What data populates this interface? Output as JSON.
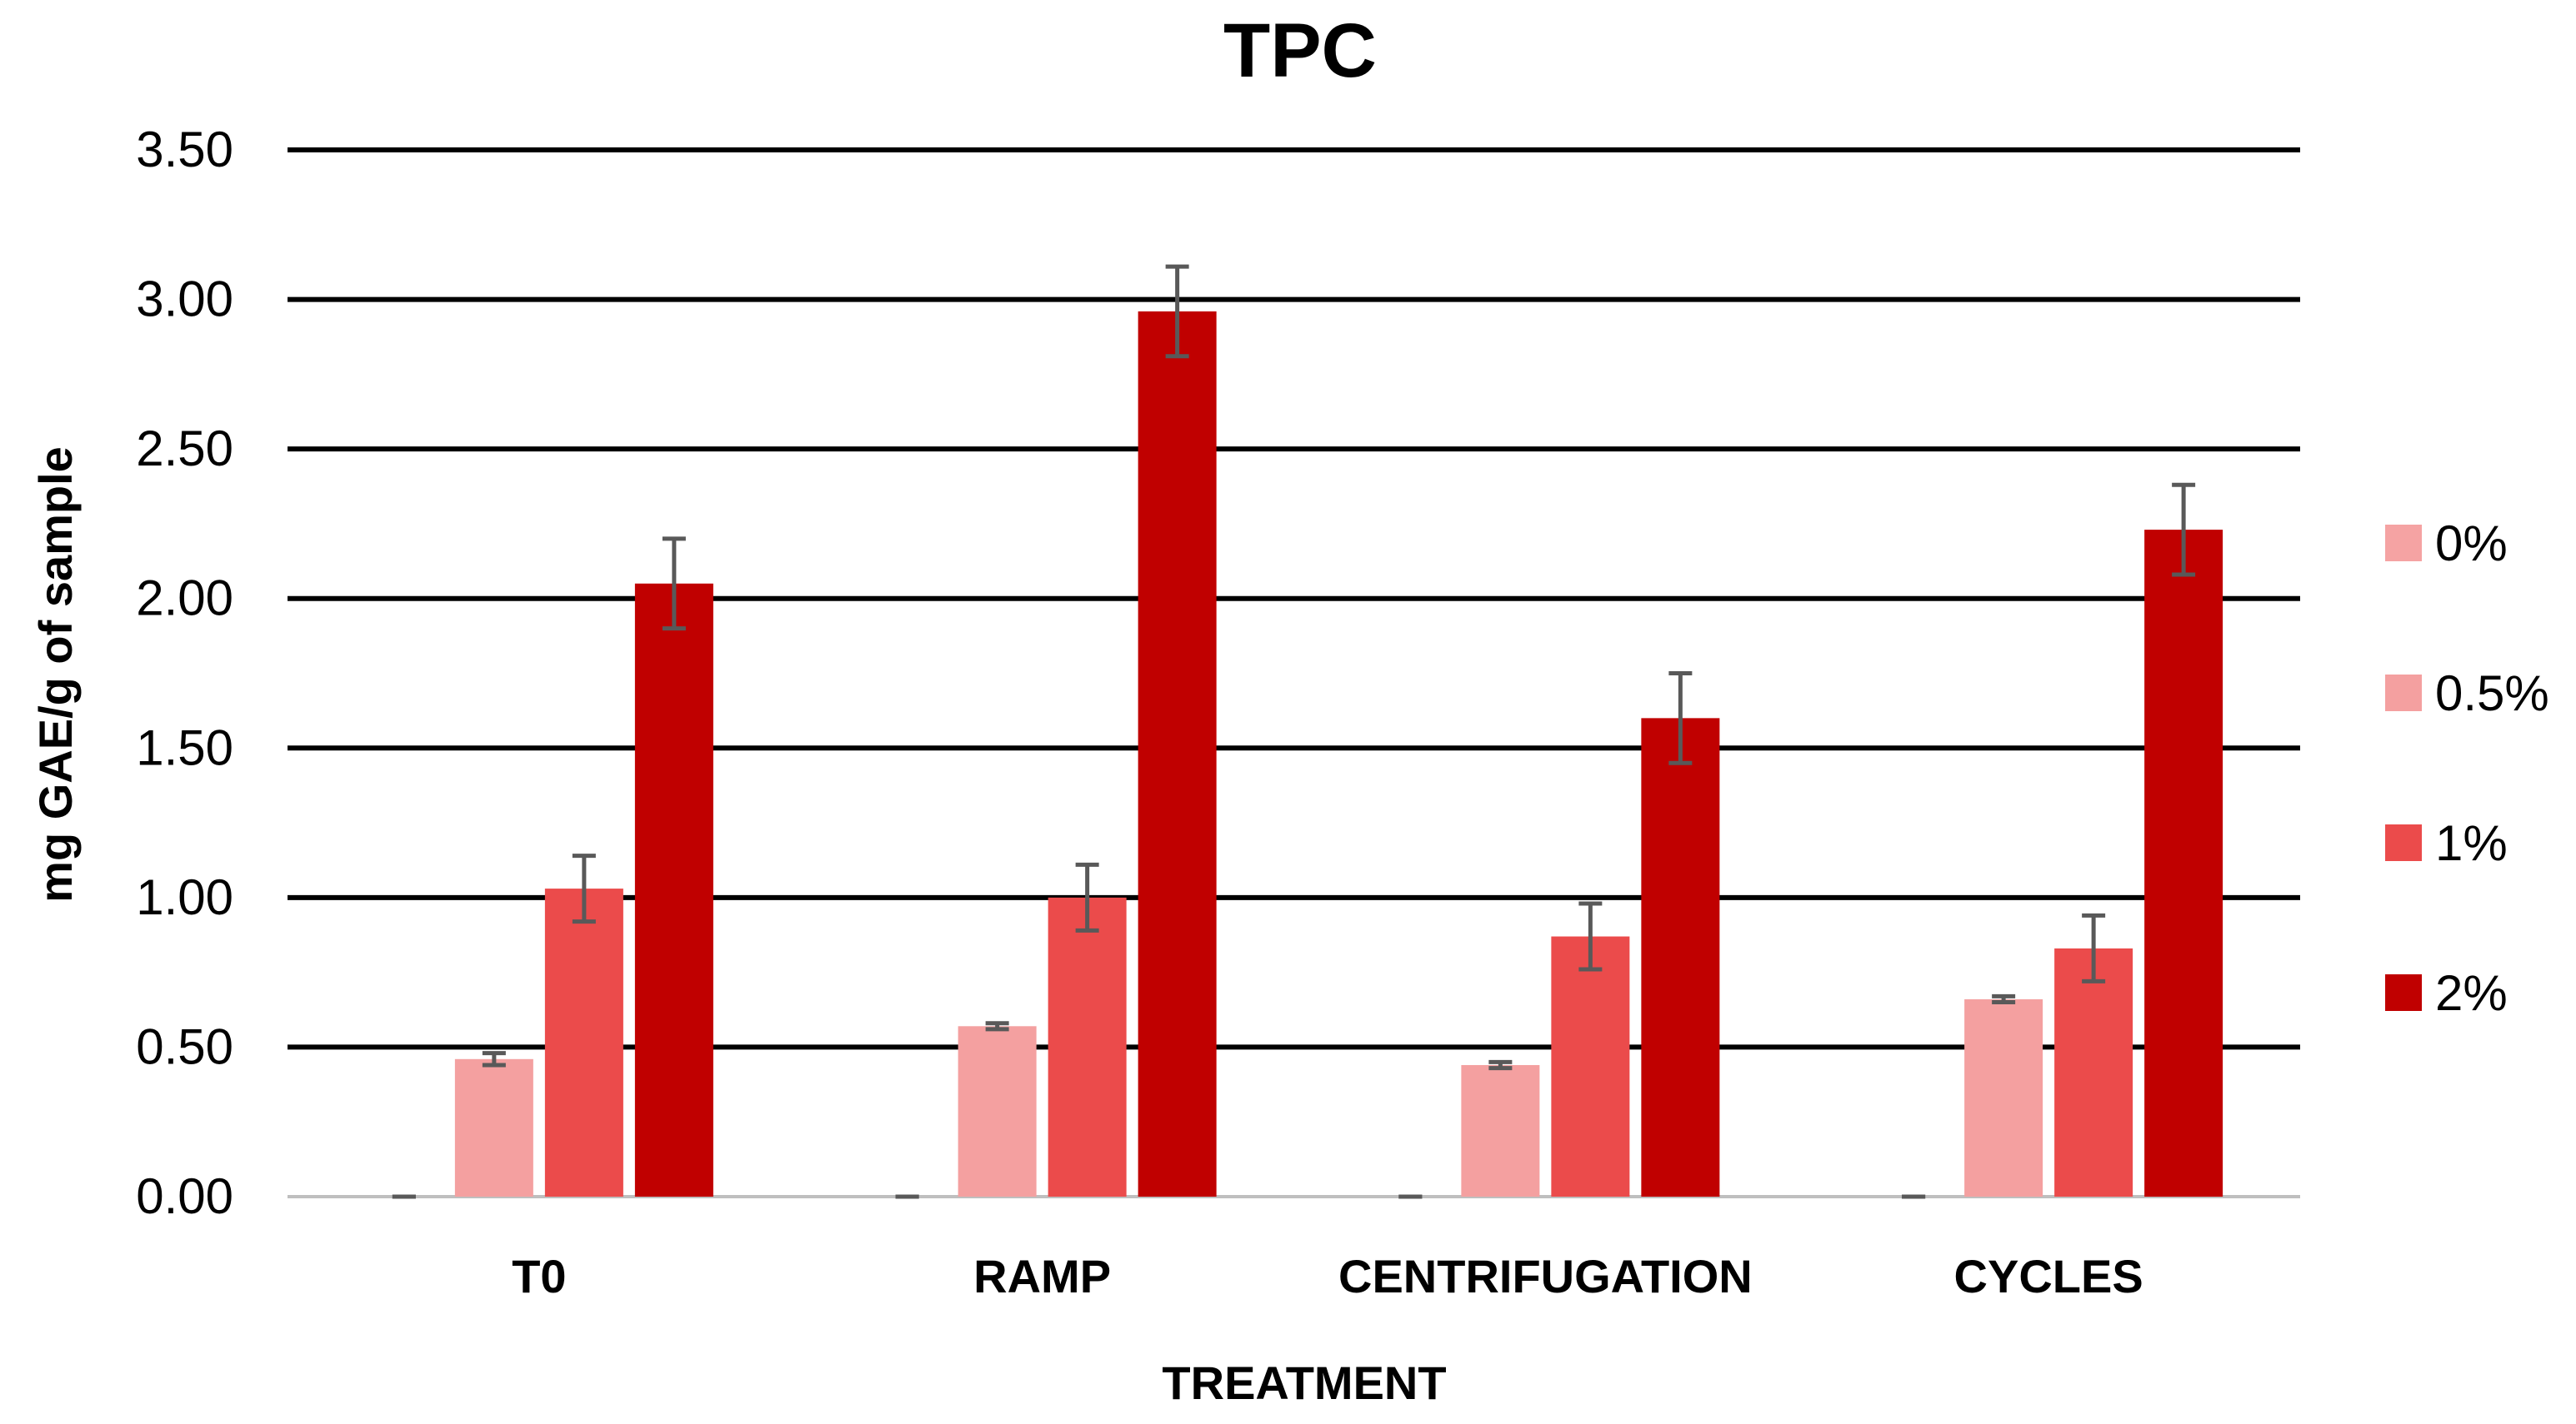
{
  "chart_data": {
    "type": "bar",
    "title": "TPC",
    "xlabel": "TREATMENT",
    "ylabel": "mg GAE/g of sample",
    "ylim": [
      0,
      3.5
    ],
    "yticks": [
      "0.00",
      "0.50",
      "1.00",
      "1.50",
      "2.00",
      "2.50",
      "3.00",
      "3.50"
    ],
    "grid": true,
    "legend_position": "right",
    "categories": [
      "T0",
      "RAMP",
      "CENTRIFUGATION",
      "CYCLES"
    ],
    "series": [
      {
        "name": "0%",
        "color": "#f5a3a3",
        "values": [
          0.0,
          0.0,
          0.0,
          0.0
        ],
        "errors": [
          0.0,
          0.0,
          0.0,
          0.0
        ]
      },
      {
        "name": "0.5%",
        "color": "#f4a0a0",
        "values": [
          0.46,
          0.57,
          0.44,
          0.66
        ],
        "errors": [
          0.02,
          0.01,
          0.01,
          0.01
        ]
      },
      {
        "name": "1%",
        "color": "#eb4b4b",
        "values": [
          1.03,
          1.0,
          0.87,
          0.83
        ],
        "errors": [
          0.11,
          0.11,
          0.11,
          0.11
        ]
      },
      {
        "name": "2%",
        "color": "#c00000",
        "values": [
          2.05,
          2.96,
          1.6,
          2.23
        ],
        "errors": [
          0.15,
          0.15,
          0.15,
          0.15
        ]
      }
    ]
  }
}
